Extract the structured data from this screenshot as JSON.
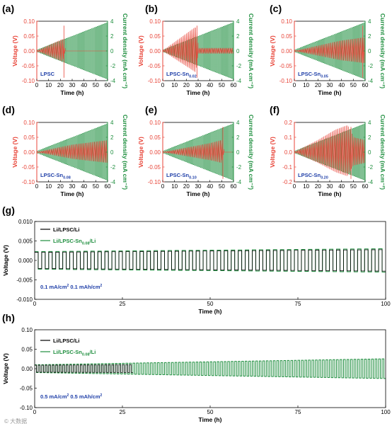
{
  "chart_data": [
    {
      "panel": "(a)",
      "type": "line",
      "annotation": "LPSC",
      "annotation_sub": "",
      "xlabel": "Time (h)",
      "ylabel_left": "Voltage (V)",
      "ylabel_right": "Current density (mA cm⁻²)",
      "xlim": [
        0,
        60
      ],
      "ylim_left": [
        -0.1,
        0.1
      ],
      "ylim_right": [
        -4,
        4
      ],
      "xticks": [
        "0",
        "10",
        "20",
        "30",
        "40",
        "50",
        "60"
      ],
      "yticks_left": [
        "0.10",
        "0.05",
        "0.00",
        "-0.05",
        "-0.10"
      ],
      "yticks_right": [
        "4",
        "2",
        "0",
        "-2",
        "-4"
      ],
      "voltage_envelope": {
        "t": [
          0,
          22,
          24,
          60
        ],
        "v": [
          0.0,
          0.04,
          0.0,
          0.0
        ]
      },
      "short_circuit_h": 23
    },
    {
      "panel": "(b)",
      "type": "line",
      "annotation": "LPSC-Sn",
      "annotation_sub": "0.02",
      "xlabel": "Time (h)",
      "ylabel_left": "Voltage (V)",
      "ylabel_right": "Current density (mA cm⁻²)",
      "xlim": [
        0,
        60
      ],
      "ylim_left": [
        -0.1,
        0.1
      ],
      "ylim_right": [
        -4,
        4
      ],
      "xticks": [
        "0",
        "10",
        "20",
        "30",
        "40",
        "50",
        "60"
      ],
      "yticks_left": [
        "0.10",
        "0.05",
        "0.00",
        "-0.05",
        "-0.10"
      ],
      "yticks_right": [
        "4",
        "2",
        "0",
        "-2",
        "-4"
      ],
      "voltage_envelope": {
        "t": [
          0,
          28,
          30,
          60
        ],
        "v": [
          0.0,
          0.08,
          0.01,
          0.01
        ]
      },
      "short_circuit_h": 29
    },
    {
      "panel": "(c)",
      "type": "line",
      "annotation": "LPSC-Sn",
      "annotation_sub": "0.05",
      "xlabel": "Time (h)",
      "ylabel_left": "Voltage (V)",
      "ylabel_right": "Current density (mA cm⁻²)",
      "xlim": [
        0,
        60
      ],
      "ylim_left": [
        -0.1,
        0.1
      ],
      "ylim_right": [
        -4,
        4
      ],
      "xticks": [
        "0",
        "10",
        "20",
        "30",
        "40",
        "50",
        "60"
      ],
      "yticks_left": [
        "0.10",
        "0.05",
        "0.00",
        "-0.05",
        "-0.10"
      ],
      "yticks_right": [
        "4",
        "2",
        "0",
        "-2",
        "-4"
      ],
      "voltage_envelope": {
        "t": [
          0,
          40,
          50,
          58
        ],
        "v": [
          0.0,
          0.035,
          0.04,
          0.045
        ]
      },
      "short_circuit_h": 58
    },
    {
      "panel": "(d)",
      "type": "line",
      "annotation": "LPSC-Sn",
      "annotation_sub": "0.08",
      "xlabel": "Time (h)",
      "ylabel_left": "Voltage (V)",
      "ylabel_right": "Current density (mA cm⁻²)",
      "xlim": [
        0,
        60
      ],
      "ylim_left": [
        -0.1,
        0.1
      ],
      "ylim_right": [
        -4,
        4
      ],
      "xticks": [
        "0",
        "10",
        "20",
        "30",
        "40",
        "50",
        "60"
      ],
      "yticks_left": [
        "0.10",
        "0.05",
        "0.00",
        "-0.05",
        "-0.10"
      ],
      "yticks_right": [
        "4",
        "2",
        "0",
        "-2",
        "-4"
      ],
      "voltage_envelope": {
        "t": [
          0,
          30,
          60
        ],
        "v": [
          0.0,
          0.025,
          0.04
        ]
      },
      "short_circuit_h": 60
    },
    {
      "panel": "(e)",
      "type": "line",
      "annotation": "LPSC-Sn",
      "annotation_sub": "0.10",
      "xlabel": "Time (h)",
      "ylabel_left": "Voltage (V)",
      "ylabel_right": "Current density (mA cm⁻²)",
      "xlim": [
        0,
        60
      ],
      "ylim_left": [
        -0.1,
        0.1
      ],
      "ylim_right": [
        -4,
        4
      ],
      "xticks": [
        "0",
        "10",
        "20",
        "30",
        "40",
        "50",
        "60"
      ],
      "yticks_left": [
        "0.10",
        "0.05",
        "0.00",
        "-0.05",
        "-0.10"
      ],
      "yticks_right": [
        "4",
        "2",
        "0",
        "-2",
        "-4"
      ],
      "voltage_envelope": {
        "t": [
          0,
          40,
          50,
          52,
          60
        ],
        "v": [
          0.0,
          0.03,
          0.04,
          0.0,
          0.0
        ]
      },
      "short_circuit_h": 51
    },
    {
      "panel": "(f)",
      "type": "line",
      "annotation": "LPSC-Sn",
      "annotation_sub": "0.20",
      "xlabel": "Time (h)",
      "ylabel_left": "Voltage (V)",
      "ylabel_right": "Current density (mA cm⁻²)",
      "xlim": [
        0,
        60
      ],
      "ylim_left": [
        -0.2,
        0.2
      ],
      "ylim_right": [
        -4,
        4
      ],
      "xticks": [
        "0",
        "10",
        "20",
        "30",
        "40",
        "50",
        "60"
      ],
      "yticks_left": [
        "0.2",
        "0.1",
        "0.0",
        "-0.1",
        "-0.2"
      ],
      "yticks_right": [
        "4",
        "2",
        "0",
        "-2",
        "-4"
      ],
      "voltage_envelope": {
        "t": [
          0,
          20,
          35,
          45,
          50,
          60
        ],
        "v": [
          0.0,
          0.08,
          0.15,
          0.18,
          0.1,
          0.08
        ]
      },
      "short_circuit_h": 48
    },
    {
      "panel": "(g)",
      "type": "line",
      "xlabel": "Time (h)",
      "ylabel": "Voltage (V)",
      "xlim": [
        0,
        100
      ],
      "ylim": [
        -0.01,
        0.01
      ],
      "xticks": [
        "0",
        "25",
        "50",
        "75",
        "100"
      ],
      "yticks": [
        "0.010",
        "0.005",
        "0.000",
        "-0.005",
        "-0.010"
      ],
      "series": [
        {
          "name": "Li/LPSC/Li",
          "color": "#000000",
          "amplitude_v": 0.0023,
          "end_h": 100
        },
        {
          "name_main": "Li/LPSC-Sn",
          "name_sub": "0.08",
          "name_tail": "/Li",
          "color": "#1e8e3e",
          "amplitude_v": 0.0025,
          "end_h": 100
        }
      ],
      "note_a": "0.1 mA/cm",
      "note_a_sup": "2",
      "note_b": "0.1 mAh/cm",
      "note_b_sup": "2"
    },
    {
      "panel": "(h)",
      "type": "line",
      "xlabel": "Time (h)",
      "ylabel": "Voltage (V)",
      "xlim": [
        0,
        100
      ],
      "ylim": [
        -0.1,
        0.1
      ],
      "xticks": [
        "0",
        "25",
        "50",
        "75",
        "100"
      ],
      "yticks": [
        "0.10",
        "0.05",
        "0.00",
        "-0.05",
        "-0.10"
      ],
      "series": [
        {
          "name": "Li/LPSC/Li",
          "color": "#000000",
          "amplitude_v": 0.01,
          "end_h": 28
        },
        {
          "name_main": "Li/LPSC-Sn",
          "name_sub": "0.08",
          "name_tail": "/Li",
          "color": "#1e8e3e",
          "amplitude_v": 0.011,
          "end_h": 100
        }
      ],
      "note_a": "0.5 mA/cm",
      "note_a_sup": "2",
      "note_b": "0.5 mAh/cm",
      "note_b_sup": "2"
    }
  ],
  "colors": {
    "voltage": "#e8463a",
    "current": "#1e8e3e",
    "annotation": "#1f3fa8",
    "axis": "#000000"
  },
  "watermark": "© 大数据"
}
